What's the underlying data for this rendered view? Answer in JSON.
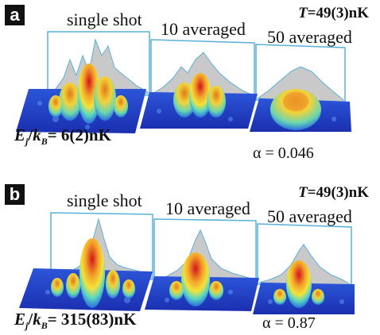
{
  "panels": [
    {
      "tag": "a",
      "temperature": {
        "symbol": "T",
        "value": "=49(3)nK"
      },
      "labels": [
        "single shot",
        "10 averaged",
        "50 averaged"
      ],
      "energy": {
        "E": "E",
        "sub_j": "j",
        "sep": "/",
        "k": "k",
        "sub_B": "B",
        "value": "= 6(2)nK"
      },
      "alpha": "α = 0.046"
    },
    {
      "tag": "b",
      "temperature": {
        "symbol": "T",
        "value": "=49(3)nK"
      },
      "labels": [
        "single shot",
        "10 averaged",
        "50 averaged"
      ],
      "energy": {
        "E": "E",
        "sub_j": "j",
        "sep": "/",
        "k": "k",
        "sub_B": "B",
        "value": "= 315(83)nK"
      },
      "alpha": "α = 0.87"
    }
  ],
  "colors": {
    "frame": "#59b0d8",
    "profile_fill": "#c9c9c9",
    "floor": "#1f3fc8",
    "peak_high": "#d4141a",
    "peak_mid": "#f3c22a",
    "peak_low": "#5ad7c0"
  }
}
